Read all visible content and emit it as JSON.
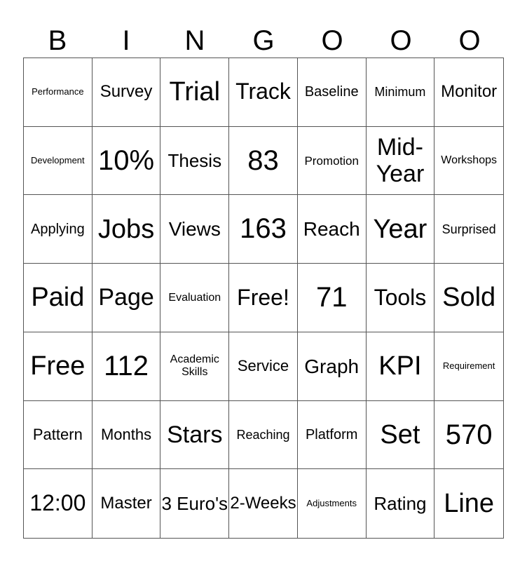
{
  "header": [
    "B",
    "I",
    "N",
    "G",
    "O",
    "O",
    "O"
  ],
  "cells": [
    [
      "Performance",
      "Survey",
      "Trial",
      "Track",
      "Baseline",
      "Minimum",
      "Monitor"
    ],
    [
      "Development",
      "10%",
      "Thesis",
      "83",
      "Promotion",
      "Mid-Year",
      "Workshops"
    ],
    [
      "Applying",
      "Jobs",
      "Views",
      "163",
      "Reach",
      "Year",
      "Surprised"
    ],
    [
      "Paid",
      "Page",
      "Evaluation",
      "Free!",
      "71",
      "Tools",
      "Sold"
    ],
    [
      "Free",
      "112",
      "Academic Skills",
      "Service",
      "Graph",
      "KPI",
      "Requirement"
    ],
    [
      "Pattern",
      "Months",
      "Stars",
      "Reaching",
      "Platform",
      "Set",
      "570"
    ],
    [
      "12:00",
      "Master",
      "3 Euro's",
      "2-Weeks",
      "Adjustments",
      "Rating",
      "Line"
    ]
  ]
}
